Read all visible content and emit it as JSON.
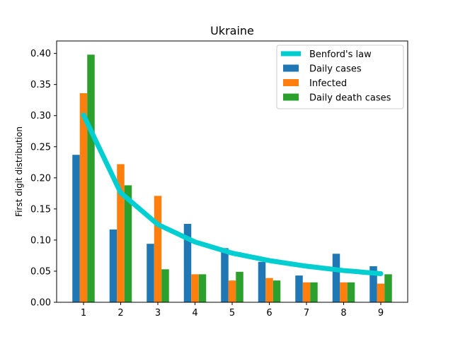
{
  "chart_data": {
    "type": "bar",
    "title": "Ukraine",
    "xlabel": "",
    "ylabel": "First digit distribution",
    "categories": [
      "1",
      "2",
      "3",
      "4",
      "5",
      "6",
      "7",
      "8",
      "9"
    ],
    "ylim": [
      0,
      0.42
    ],
    "yticks": [
      "0.00",
      "0.05",
      "0.10",
      "0.15",
      "0.20",
      "0.25",
      "0.30",
      "0.35",
      "0.40"
    ],
    "legend_position": "top-right",
    "grid": false,
    "line_series": {
      "name": "Benford's law",
      "color": "#00ced1",
      "values": [
        0.301,
        0.176,
        0.125,
        0.097,
        0.079,
        0.067,
        0.058,
        0.051,
        0.046
      ]
    },
    "series": [
      {
        "name": "Daily cases",
        "color": "#1f77b4",
        "values": [
          0.237,
          0.117,
          0.094,
          0.126,
          0.087,
          0.065,
          0.043,
          0.078,
          0.058
        ]
      },
      {
        "name": "Infected",
        "color": "#ff7f0e",
        "values": [
          0.336,
          0.222,
          0.171,
          0.045,
          0.035,
          0.039,
          0.032,
          0.032,
          0.03
        ]
      },
      {
        "name": "Daily death cases",
        "color": "#2ca02c",
        "values": [
          0.398,
          0.188,
          0.053,
          0.045,
          0.049,
          0.035,
          0.032,
          0.032,
          0.045
        ]
      }
    ]
  }
}
